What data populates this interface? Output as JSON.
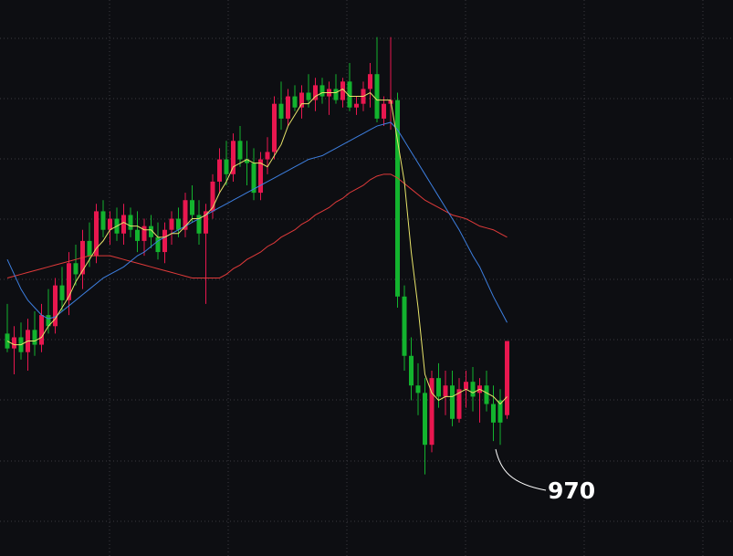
{
  "chart_data": {
    "type": "candlestick",
    "ylim": [
      940,
      1090
    ],
    "up_color": "#e8174f",
    "down_color": "#13b32e",
    "open": [
      1000,
      996,
      999,
      995,
      1001,
      997,
      1005,
      1002,
      1013,
      1009,
      1019,
      1016,
      1025,
      1021,
      1033,
      1028,
      1031,
      1027,
      1032,
      1028,
      1025,
      1029,
      1026,
      1022,
      1028,
      1031,
      1028,
      1036,
      1032,
      1027,
      1033,
      1041,
      1047,
      1043,
      1052,
      1047,
      1046,
      1038,
      1047,
      1049,
      1062,
      1058,
      1064,
      1061,
      1065,
      1063,
      1067,
      1064,
      1066,
      1063,
      1068,
      1061,
      1062,
      1066,
      1070,
      1058,
      1062,
      1063,
      1010,
      994,
      986,
      984,
      970,
      988,
      983,
      986,
      977,
      985,
      987,
      984,
      986,
      981,
      982,
      978
    ],
    "high": [
      1008,
      1002,
      1003,
      1004,
      1006,
      1008,
      1012,
      1015,
      1018,
      1022,
      1024,
      1028,
      1030,
      1035,
      1036,
      1033,
      1034,
      1035,
      1034,
      1033,
      1031,
      1032,
      1030,
      1030,
      1033,
      1034,
      1038,
      1040,
      1036,
      1035,
      1043,
      1050,
      1052,
      1054,
      1056,
      1052,
      1050,
      1049,
      1053,
      1064,
      1068,
      1066,
      1067,
      1067,
      1070,
      1069,
      1069,
      1068,
      1070,
      1069,
      1073,
      1064,
      1068,
      1073,
      1080,
      1064,
      1080,
      1065,
      1013,
      999,
      992,
      988,
      990,
      992,
      990,
      990,
      988,
      990,
      991,
      988,
      990,
      986,
      985,
      998
    ],
    "low": [
      995,
      989,
      993,
      990,
      994,
      995,
      1000,
      1000,
      1006,
      1005,
      1013,
      1012,
      1018,
      1019,
      1026,
      1024,
      1025,
      1024,
      1026,
      1022,
      1021,
      1023,
      1020,
      1019,
      1024,
      1026,
      1026,
      1030,
      1024,
      1008,
      1031,
      1038,
      1040,
      1041,
      1045,
      1040,
      1036,
      1036,
      1043,
      1047,
      1055,
      1056,
      1060,
      1058,
      1061,
      1060,
      1062,
      1059,
      1062,
      1061,
      1060,
      1059,
      1060,
      1061,
      1057,
      1056,
      1055,
      1007,
      990,
      982,
      978,
      962,
      968,
      980,
      978,
      975,
      976,
      980,
      979,
      976,
      979,
      971,
      970,
      977
    ],
    "close": [
      996,
      999,
      995,
      1001,
      997,
      1005,
      1002,
      1013,
      1009,
      1019,
      1016,
      1025,
      1021,
      1033,
      1028,
      1031,
      1027,
      1032,
      1028,
      1025,
      1029,
      1026,
      1022,
      1028,
      1031,
      1028,
      1036,
      1032,
      1027,
      1033,
      1041,
      1047,
      1043,
      1052,
      1047,
      1046,
      1038,
      1047,
      1049,
      1062,
      1058,
      1064,
      1061,
      1065,
      1063,
      1067,
      1064,
      1066,
      1063,
      1068,
      1061,
      1062,
      1066,
      1070,
      1058,
      1062,
      1063,
      1010,
      994,
      986,
      984,
      970,
      988,
      983,
      986,
      977,
      985,
      987,
      983,
      986,
      981,
      976,
      976,
      998
    ],
    "lines": [
      {
        "color": "#e03a3a",
        "values": [
          1015,
          1015.5,
          1016,
          1016.5,
          1017,
          1017.5,
          1018,
          1018.5,
          1019,
          1019.5,
          1020,
          1020.5,
          1021,
          1021,
          1021,
          1021,
          1020.5,
          1020,
          1019.5,
          1019,
          1018.5,
          1018,
          1017.5,
          1017,
          1016.5,
          1016,
          1015.5,
          1015,
          1015,
          1015,
          1015,
          1015,
          1016,
          1017.5,
          1018.5,
          1020,
          1021,
          1022,
          1023.5,
          1024.5,
          1026,
          1027,
          1028,
          1029.5,
          1030.5,
          1032,
          1033,
          1034,
          1035.5,
          1036.5,
          1038,
          1039,
          1040,
          1041.5,
          1042.5,
          1043,
          1043,
          1042,
          1040.5,
          1039,
          1037.5,
          1036,
          1035,
          1034,
          1033,
          1032,
          1031.5,
          1031,
          1030,
          1029,
          1028.5,
          1028,
          1027,
          1026
        ]
      },
      {
        "color": "#3d7fe0",
        "values": [
          1020,
          1016,
          1012,
          1009,
          1007,
          1005,
          1004,
          1004.5,
          1006,
          1007.5,
          1009,
          1010.5,
          1012,
          1013.5,
          1015,
          1016,
          1017,
          1018,
          1019.5,
          1021,
          1022,
          1023.5,
          1025,
          1026,
          1027,
          1028,
          1029,
          1030,
          1031,
          1032,
          1033,
          1034,
          1035,
          1036,
          1037,
          1038,
          1039,
          1040,
          1041,
          1042,
          1043,
          1044,
          1045,
          1046,
          1047,
          1047.5,
          1048,
          1049,
          1050,
          1051,
          1052,
          1053,
          1054,
          1055,
          1056,
          1056.5,
          1057,
          1055,
          1052,
          1049,
          1046,
          1043,
          1040,
          1037,
          1034,
          1031,
          1028,
          1024.5,
          1021,
          1018,
          1014,
          1010,
          1006.5,
          1003
        ]
      },
      {
        "color": "#e8e46a",
        "values": [
          998,
          997,
          997,
          998,
          998,
          999,
          1002,
          1004,
          1007,
          1010,
          1014,
          1017,
          1020,
          1023,
          1025,
          1028,
          1029,
          1030,
          1029,
          1029,
          1028,
          1028,
          1026,
          1026,
          1027,
          1027,
          1029,
          1031,
          1031,
          1032,
          1034,
          1038,
          1041,
          1045,
          1046,
          1047,
          1046,
          1046,
          1045,
          1048,
          1051,
          1056,
          1059,
          1062,
          1062,
          1064,
          1065,
          1065,
          1065,
          1066,
          1064,
          1064,
          1064,
          1065,
          1063,
          1063,
          1063,
          1052,
          1041,
          1022,
          1007,
          989,
          984,
          982,
          983,
          983,
          984,
          985,
          984,
          985,
          984,
          983,
          981,
          983
        ]
      }
    ],
    "annotation": "970"
  }
}
